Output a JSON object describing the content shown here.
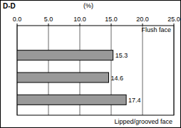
{
  "chart_data": {
    "type": "bar",
    "orientation": "horizontal",
    "title": "D-D",
    "x_label": "(%)",
    "annotations": [
      "Flush face",
      "Lipped/grooved face"
    ],
    "categories": [
      null,
      null,
      null
    ],
    "values": [
      15.3,
      14.6,
      17.4
    ],
    "color": "#999999",
    "xlim": [
      0,
      25
    ],
    "xticks": [
      {
        "value": 0,
        "label": "0.0"
      },
      {
        "value": 5,
        "label": "5.0"
      },
      {
        "value": 10,
        "label": "10.0"
      },
      {
        "value": 15,
        "label": "15.0"
      },
      {
        "value": 20,
        "label": "20.0"
      },
      {
        "value": 25,
        "label": "25.0"
      }
    ],
    "grid": true,
    "data_labels": true
  }
}
